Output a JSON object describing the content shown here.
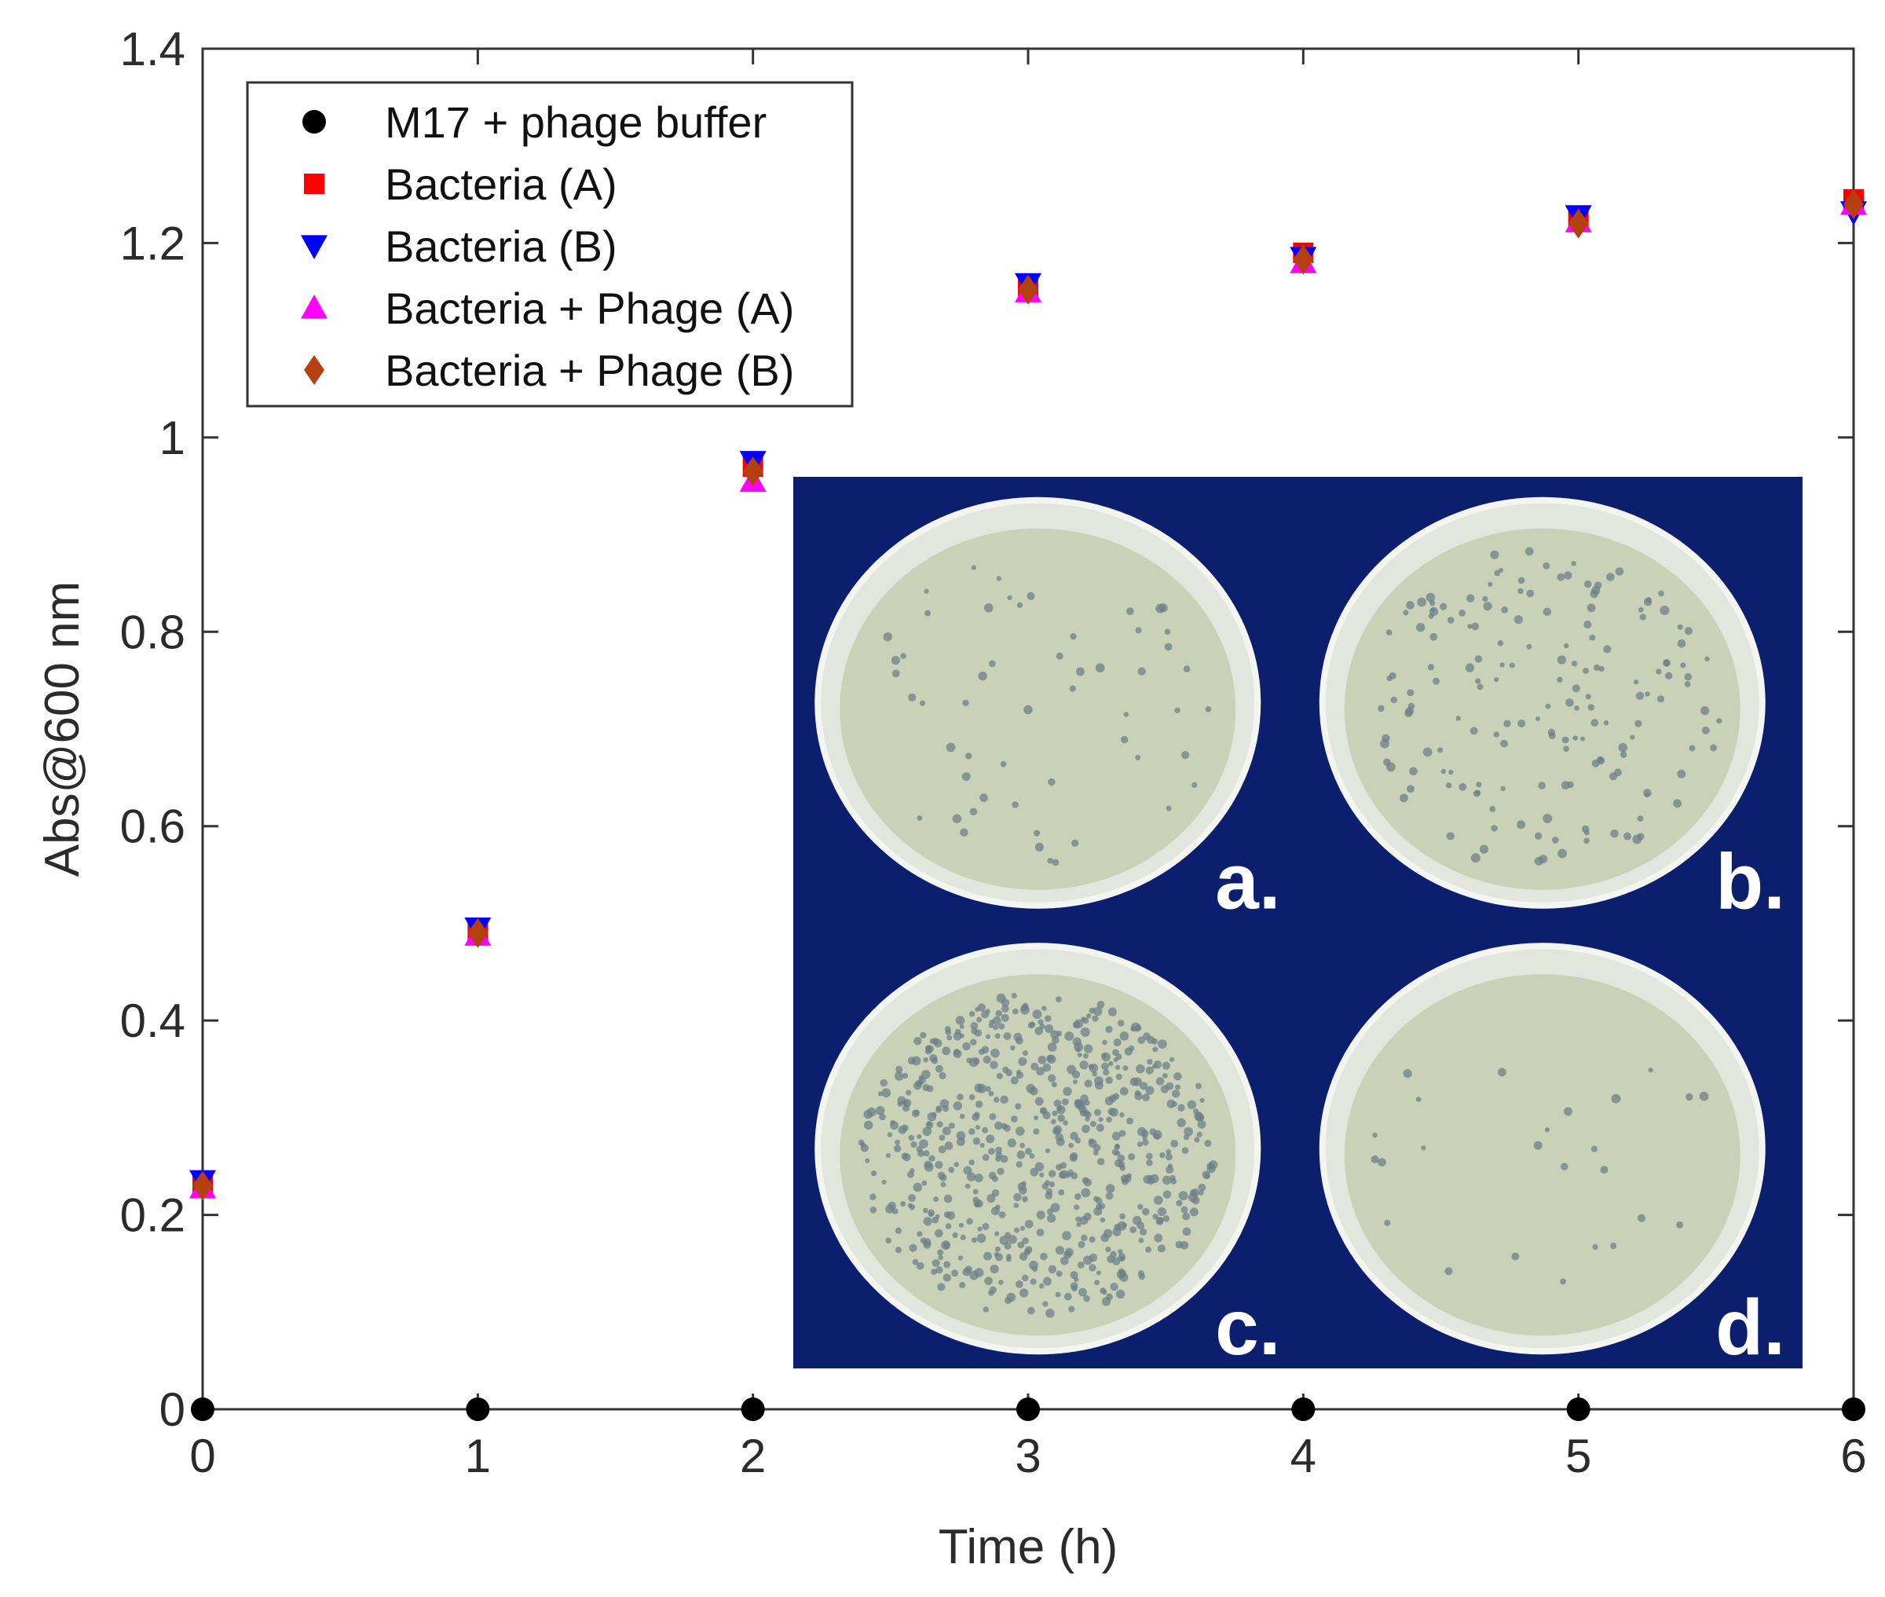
{
  "chart_data": {
    "type": "scatter",
    "xlabel": "Time (h)",
    "ylabel": "Abs@600 nm",
    "xlim": [
      0,
      6
    ],
    "ylim": [
      0,
      1.4
    ],
    "x_ticks": [
      "0",
      "1",
      "2",
      "3",
      "4",
      "5",
      "6"
    ],
    "y_ticks": [
      "0",
      "0.2",
      "0.4",
      "0.6",
      "0.8",
      "1",
      "1.2",
      "1.4"
    ],
    "grid": false,
    "legend_position": "top-left",
    "x": [
      0,
      1,
      2,
      3,
      4,
      5,
      6
    ],
    "series": [
      {
        "name": "M17 + phage buffer",
        "marker": "circle",
        "color": "#000000",
        "values": [
          0,
          0,
          0,
          0,
          0,
          0,
          0
        ]
      },
      {
        "name": "Bacteria (A)",
        "marker": "square",
        "color": "#ff0000",
        "values": [
          0.23,
          0.49,
          0.97,
          1.155,
          1.19,
          1.225,
          1.245
        ]
      },
      {
        "name": "Bacteria (B)",
        "marker": "triangle-down",
        "color": "#0000ff",
        "values": [
          0.235,
          0.495,
          0.975,
          1.158,
          1.185,
          1.228,
          1.232
        ]
      },
      {
        "name": "Bacteria + Phage (A)",
        "marker": "triangle-up",
        "color": "#ff00ff",
        "values": [
          0.228,
          0.488,
          0.955,
          1.15,
          1.18,
          1.222,
          1.24
        ]
      },
      {
        "name": "Bacteria + Phage (B)",
        "marker": "diamond",
        "color": "#b5400f",
        "values": [
          0.23,
          0.49,
          0.965,
          1.152,
          1.183,
          1.22,
          1.24
        ]
      }
    ]
  },
  "inset": {
    "background_color": "#0c1f6e",
    "agar_color": "#c9d1b7",
    "panels": [
      {
        "letter": "a.",
        "plaque_density": "low"
      },
      {
        "letter": "b.",
        "plaque_density": "medium"
      },
      {
        "letter": "c.",
        "plaque_density": "high"
      },
      {
        "letter": "d.",
        "plaque_density": "very-low"
      }
    ]
  }
}
